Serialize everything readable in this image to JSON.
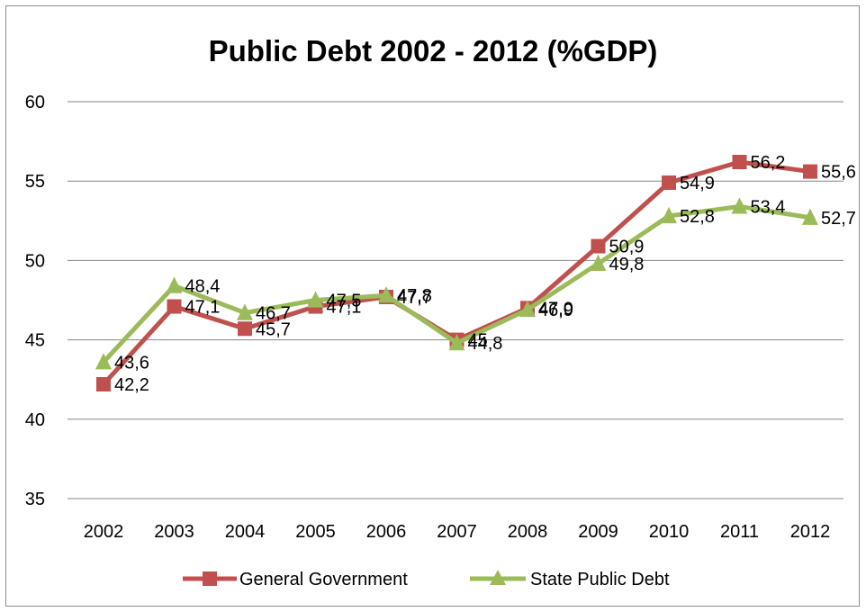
{
  "chart_data": {
    "type": "line",
    "title": "Public Debt 2002 - 2012 (%GDP)",
    "xlabel": "",
    "ylabel": "",
    "categories": [
      "2002",
      "2003",
      "2004",
      "2005",
      "2006",
      "2007",
      "2008",
      "2009",
      "2010",
      "2011",
      "2012"
    ],
    "ylim": [
      35,
      60
    ],
    "yticks": [
      35,
      40,
      45,
      50,
      55,
      60
    ],
    "grid": true,
    "legend": "bottom",
    "series": [
      {
        "name": "General Government",
        "color": "#c0504d",
        "marker": "square",
        "values": [
          42.2,
          47.1,
          45.7,
          47.1,
          47.7,
          45.0,
          47.0,
          50.9,
          54.9,
          56.2,
          55.6
        ],
        "labels": [
          "42,2",
          "47,1",
          "45,7",
          "47,1",
          "47,7",
          "45",
          "47,0",
          "50,9",
          "54,9",
          "56,2",
          "55,6"
        ]
      },
      {
        "name": "State Public Debt",
        "color": "#9bbb59",
        "marker": "triangle",
        "values": [
          43.6,
          48.4,
          46.7,
          47.5,
          47.8,
          44.8,
          46.9,
          49.8,
          52.8,
          53.4,
          52.7
        ],
        "labels": [
          "43,6",
          "48,4",
          "46,7",
          "47,5",
          "47,8",
          "44,8",
          "46,9",
          "49,8",
          "52,8",
          "53,4",
          "52,7"
        ]
      }
    ]
  }
}
